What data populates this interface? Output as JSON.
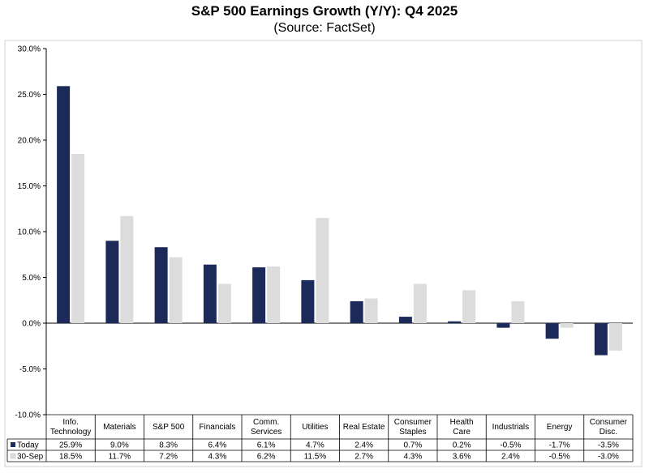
{
  "chart_data": {
    "type": "bar",
    "title": "S&P 500 Earnings Growth (Y/Y): Q4 2025",
    "subtitle": "(Source: FactSet)",
    "categories": [
      [
        "Info.",
        "Technology"
      ],
      [
        "Materials"
      ],
      [
        "S&P 500"
      ],
      [
        "Financials"
      ],
      [
        "Comm.",
        "Services"
      ],
      [
        "Utilities"
      ],
      [
        "Real Estate"
      ],
      [
        "Consumer",
        "Staples"
      ],
      [
        "Health",
        "Care"
      ],
      [
        "Industrials"
      ],
      [
        "Energy"
      ],
      [
        "Consumer",
        "Disc."
      ]
    ],
    "series": [
      {
        "name": "Today",
        "color": "#1c2a5a",
        "values": [
          25.9,
          9.0,
          8.3,
          6.4,
          6.1,
          4.7,
          2.4,
          0.7,
          0.2,
          -0.5,
          -1.7,
          -3.5
        ],
        "labels": [
          "25.9%",
          "9.0%",
          "8.3%",
          "6.4%",
          "6.1%",
          "4.7%",
          "2.4%",
          "0.7%",
          "0.2%",
          "-0.5%",
          "-1.7%",
          "-3.5%"
        ]
      },
      {
        "name": "30-Sep",
        "color": "#dcdcdc",
        "values": [
          18.5,
          11.7,
          7.2,
          4.3,
          6.2,
          11.5,
          2.7,
          4.3,
          3.6,
          2.4,
          -0.5,
          -3.0
        ],
        "labels": [
          "18.5%",
          "11.7%",
          "7.2%",
          "4.3%",
          "6.2%",
          "11.5%",
          "2.7%",
          "4.3%",
          "3.6%",
          "2.4%",
          "-0.5%",
          "-3.0%"
        ]
      }
    ],
    "ylim": [
      -10,
      30
    ],
    "yticks": [
      30,
      25,
      20,
      15,
      10,
      5,
      0,
      -5,
      -10
    ],
    "ytick_labels": [
      "30.0%",
      "25.0%",
      "20.0%",
      "15.0%",
      "10.0%",
      "5.0%",
      "0.0%",
      "-5.0%",
      "-10.0%"
    ],
    "grid": false,
    "legend": "data-table-below"
  }
}
